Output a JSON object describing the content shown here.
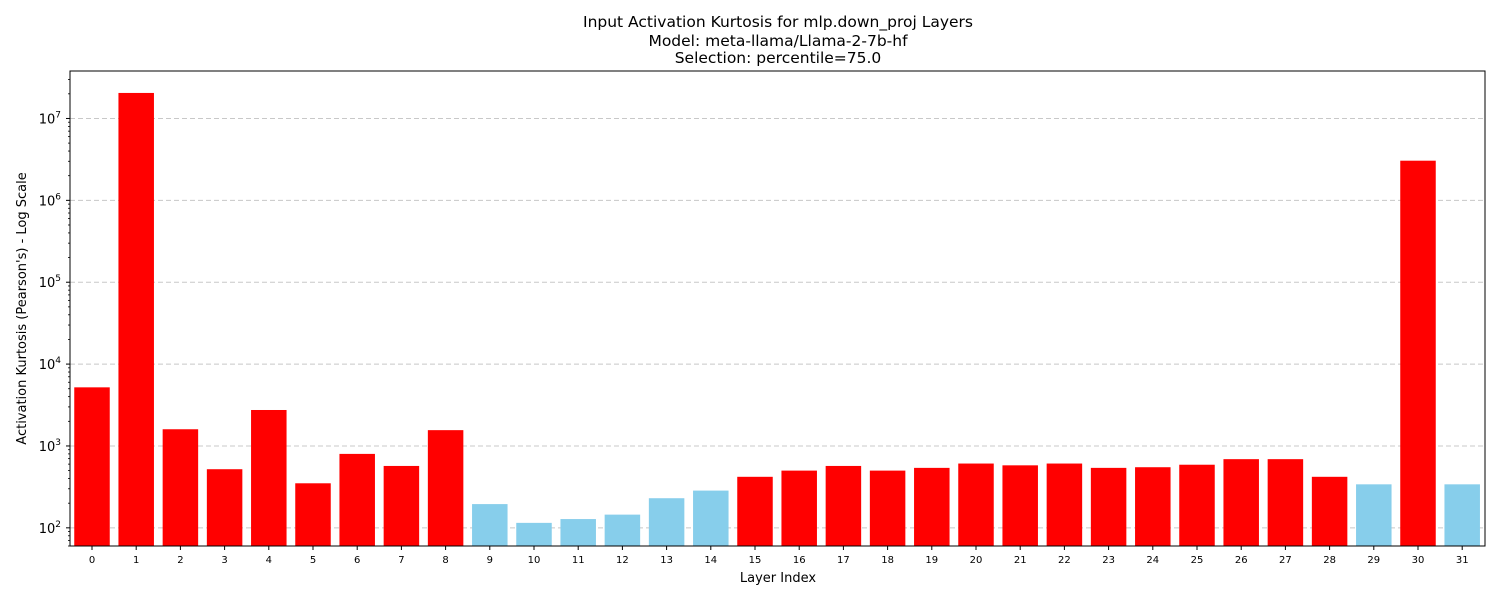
{
  "chart_data": {
    "type": "bar",
    "title": [
      "Input Activation Kurtosis for mlp.down_proj Layers",
      "Model: meta-llama/Llama-2-7b-hf",
      "Selection: percentile=75.0"
    ],
    "xlabel": "Layer Index",
    "ylabel": "Activation Kurtosis (Pearson's) - Log Scale",
    "yscale": "log",
    "ylim": [
      60,
      38000000
    ],
    "yticks": [
      {
        "base": "10",
        "exp": "2",
        "value": 100
      },
      {
        "base": "10",
        "exp": "3",
        "value": 1000
      },
      {
        "base": "10",
        "exp": "4",
        "value": 10000
      },
      {
        "base": "10",
        "exp": "5",
        "value": 100000
      },
      {
        "base": "10",
        "exp": "6",
        "value": 1000000
      },
      {
        "base": "10",
        "exp": "7",
        "value": 10000000
      }
    ],
    "grid": "y-major-dashed",
    "categories": [
      "0",
      "1",
      "2",
      "3",
      "4",
      "5",
      "6",
      "7",
      "8",
      "9",
      "10",
      "11",
      "12",
      "13",
      "14",
      "15",
      "16",
      "17",
      "18",
      "19",
      "20",
      "21",
      "22",
      "23",
      "24",
      "25",
      "26",
      "27",
      "28",
      "29",
      "30",
      "31"
    ],
    "values": [
      5200,
      20500000,
      1600,
      520,
      2750,
      350,
      800,
      570,
      1560,
      195,
      115,
      128,
      145,
      230,
      285,
      420,
      500,
      570,
      500,
      540,
      610,
      580,
      610,
      540,
      550,
      590,
      690,
      690,
      420,
      340,
      3050000,
      340
    ],
    "selected": [
      true,
      true,
      true,
      true,
      true,
      true,
      true,
      true,
      true,
      false,
      false,
      false,
      false,
      false,
      false,
      true,
      true,
      true,
      true,
      true,
      true,
      true,
      true,
      true,
      true,
      true,
      true,
      true,
      true,
      false,
      true,
      false
    ],
    "colors": {
      "selected": "#ff0000",
      "unselected": "#87ceeb"
    }
  }
}
